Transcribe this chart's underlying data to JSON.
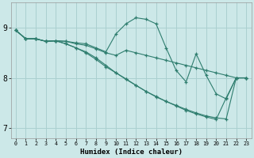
{
  "xlabel": "Humidex (Indice chaleur)",
  "ylabel": "",
  "bg_color": "#cce8e8",
  "grid_color": "#aad0d0",
  "line_color": "#2e7d6e",
  "xlim": [
    -0.5,
    23.5
  ],
  "ylim": [
    6.8,
    9.5
  ],
  "yticks": [
    7,
    8,
    9
  ],
  "xticks": [
    0,
    1,
    2,
    3,
    4,
    5,
    6,
    7,
    8,
    9,
    10,
    11,
    12,
    13,
    14,
    15,
    16,
    17,
    18,
    19,
    20,
    21,
    22,
    23
  ],
  "lines": [
    {
      "x": [
        0,
        1,
        2,
        3,
        4,
        5,
        6,
        7,
        8,
        9,
        10,
        11,
        12,
        13,
        14,
        15,
        16,
        17,
        18,
        19,
        20,
        21,
        22,
        23
      ],
      "y": [
        8.95,
        8.78,
        8.78,
        8.73,
        8.74,
        8.73,
        8.7,
        8.68,
        8.6,
        8.52,
        8.88,
        9.08,
        9.2,
        9.17,
        9.08,
        8.6,
        8.15,
        7.92,
        8.48,
        8.05,
        7.68,
        7.58,
        8.0,
        8.0
      ]
    },
    {
      "x": [
        0,
        1,
        2,
        3,
        4,
        5,
        6,
        7,
        8,
        9,
        10,
        11,
        12,
        13,
        14,
        15,
        16,
        17,
        18,
        19,
        20,
        21,
        22,
        23
      ],
      "y": [
        8.95,
        8.78,
        8.78,
        8.73,
        8.74,
        8.73,
        8.68,
        8.65,
        8.58,
        8.5,
        8.45,
        8.55,
        8.5,
        8.45,
        8.4,
        8.35,
        8.3,
        8.25,
        8.2,
        8.15,
        8.1,
        8.05,
        8.0,
        8.0
      ]
    },
    {
      "x": [
        0,
        1,
        2,
        3,
        4,
        5,
        6,
        7,
        8,
        9,
        10,
        11,
        12,
        13,
        14,
        15,
        16,
        17,
        18,
        19,
        20,
        21,
        22,
        23
      ],
      "y": [
        8.95,
        8.78,
        8.78,
        8.73,
        8.74,
        8.68,
        8.6,
        8.52,
        8.4,
        8.25,
        8.1,
        7.98,
        7.85,
        7.73,
        7.62,
        7.53,
        7.44,
        7.35,
        7.28,
        7.22,
        7.17,
        7.6,
        8.0,
        8.0
      ]
    },
    {
      "x": [
        0,
        1,
        2,
        3,
        4,
        5,
        6,
        7,
        8,
        9,
        10,
        11,
        12,
        13,
        14,
        15,
        16,
        17,
        18,
        19,
        20,
        21,
        22,
        23
      ],
      "y": [
        8.95,
        8.78,
        8.78,
        8.73,
        8.74,
        8.68,
        8.6,
        8.5,
        8.37,
        8.22,
        8.1,
        7.97,
        7.85,
        7.73,
        7.63,
        7.53,
        7.45,
        7.37,
        7.3,
        7.24,
        7.2,
        7.18,
        8.0,
        8.0
      ]
    }
  ]
}
